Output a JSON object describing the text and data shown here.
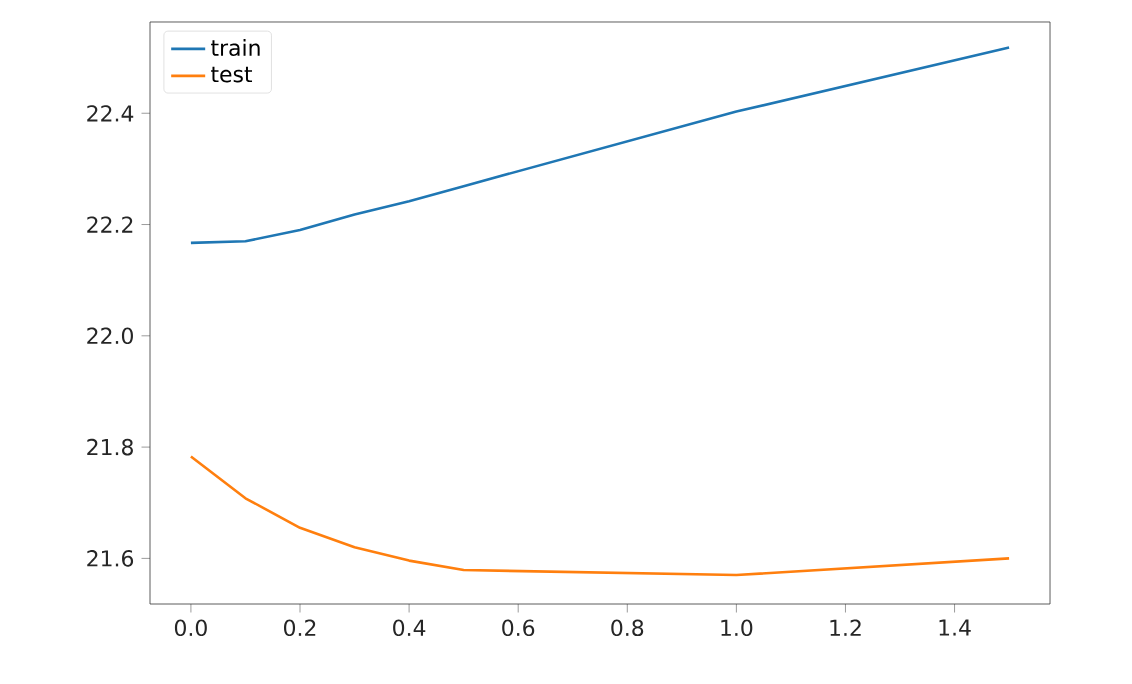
{
  "chart_data": {
    "type": "line",
    "x": [
      0,
      0.1,
      0.2,
      0.3,
      0.4,
      0.5,
      1.0,
      1.5
    ],
    "series": [
      {
        "name": "train",
        "color": "#1f77b4",
        "values": [
          22.167,
          22.17,
          22.19,
          22.218,
          22.242,
          22.269,
          22.403,
          22.518
        ]
      },
      {
        "name": "test",
        "color": "#ff7f0e",
        "values": [
          21.783,
          21.708,
          21.655,
          21.62,
          21.596,
          21.579,
          21.57,
          21.6
        ]
      }
    ],
    "xlim": [
      -0.075,
      1.575
    ],
    "ylim": [
      21.518,
      22.564
    ],
    "xticks": [
      {
        "value": 0,
        "label": "0.0"
      },
      0.2,
      0.4,
      0.6,
      0.8,
      {
        "value": 1,
        "label": "1.0"
      },
      1.2,
      1.4
    ],
    "yticks": [
      21.6,
      21.8,
      {
        "value": 22,
        "label": "22.0"
      },
      22.2,
      22.4
    ],
    "legend": "top left",
    "grid": false,
    "marker": "none",
    "line_style": "solid"
  }
}
